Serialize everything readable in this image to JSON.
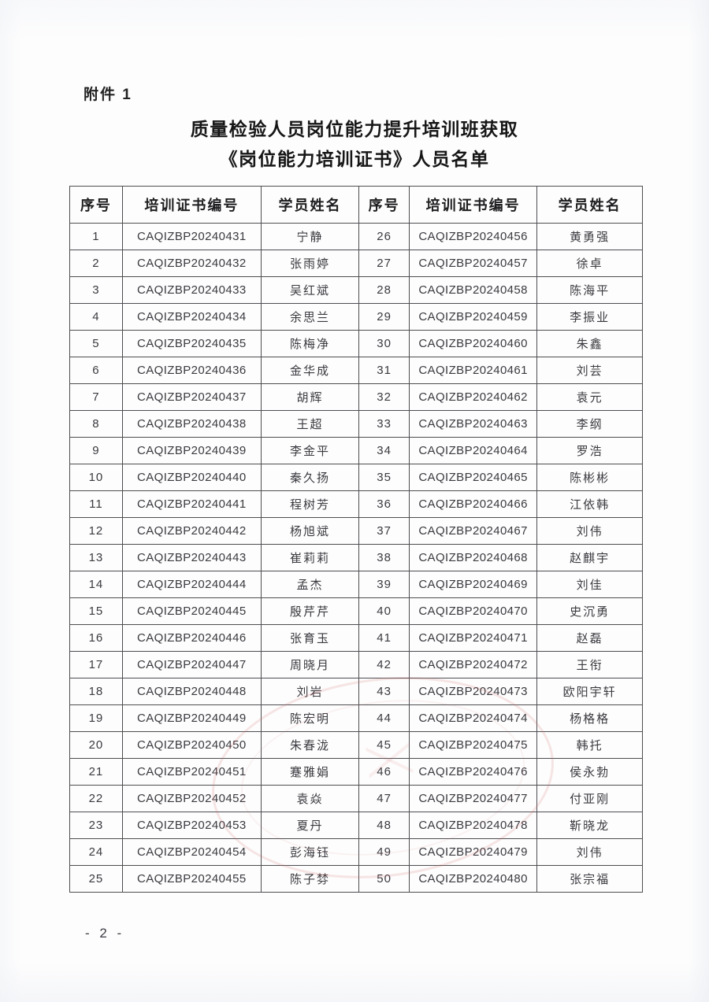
{
  "page": {
    "attachment_label": "附件 1",
    "title_line1": "质量检验人员岗位能力提升培训班获取",
    "title_line2": "《岗位能力培训证书》人员名单",
    "page_number": "- 2 -"
  },
  "seal": {
    "name": "faint-red-official-seal",
    "color": "#d66262"
  },
  "table": {
    "headers": [
      "序号",
      "培训证书编号",
      "学员姓名",
      "序号",
      "培训证书编号",
      "学员姓名"
    ],
    "rows": [
      [
        "1",
        "CAQIZBP20240431",
        "宁静",
        "26",
        "CAQIZBP20240456",
        "黄勇强"
      ],
      [
        "2",
        "CAQIZBP20240432",
        "张雨婷",
        "27",
        "CAQIZBP20240457",
        "徐卓"
      ],
      [
        "3",
        "CAQIZBP20240433",
        "吴红斌",
        "28",
        "CAQIZBP20240458",
        "陈海平"
      ],
      [
        "4",
        "CAQIZBP20240434",
        "余思兰",
        "29",
        "CAQIZBP20240459",
        "李振业"
      ],
      [
        "5",
        "CAQIZBP20240435",
        "陈梅净",
        "30",
        "CAQIZBP20240460",
        "朱鑫"
      ],
      [
        "6",
        "CAQIZBP20240436",
        "金华成",
        "31",
        "CAQIZBP20240461",
        "刘芸"
      ],
      [
        "7",
        "CAQIZBP20240437",
        "胡辉",
        "32",
        "CAQIZBP20240462",
        "袁元"
      ],
      [
        "8",
        "CAQIZBP20240438",
        "王超",
        "33",
        "CAQIZBP20240463",
        "李纲"
      ],
      [
        "9",
        "CAQIZBP20240439",
        "李金平",
        "34",
        "CAQIZBP20240464",
        "罗浩"
      ],
      [
        "10",
        "CAQIZBP20240440",
        "秦久扬",
        "35",
        "CAQIZBP20240465",
        "陈彬彬"
      ],
      [
        "11",
        "CAQIZBP20240441",
        "程树芳",
        "36",
        "CAQIZBP20240466",
        "江依韩"
      ],
      [
        "12",
        "CAQIZBP20240442",
        "杨旭斌",
        "37",
        "CAQIZBP20240467",
        "刘伟"
      ],
      [
        "13",
        "CAQIZBP20240443",
        "崔莉莉",
        "38",
        "CAQIZBP20240468",
        "赵麒宇"
      ],
      [
        "14",
        "CAQIZBP20240444",
        "孟杰",
        "39",
        "CAQIZBP20240469",
        "刘佳"
      ],
      [
        "15",
        "CAQIZBP20240445",
        "殷芹芹",
        "40",
        "CAQIZBP20240470",
        "史沉勇"
      ],
      [
        "16",
        "CAQIZBP20240446",
        "张育玉",
        "41",
        "CAQIZBP20240471",
        "赵磊"
      ],
      [
        "17",
        "CAQIZBP20240447",
        "周晓月",
        "42",
        "CAQIZBP20240472",
        "王衔"
      ],
      [
        "18",
        "CAQIZBP20240448",
        "刘岩",
        "43",
        "CAQIZBP20240473",
        "欧阳宇轩"
      ],
      [
        "19",
        "CAQIZBP20240449",
        "陈宏明",
        "44",
        "CAQIZBP20240474",
        "杨格格"
      ],
      [
        "20",
        "CAQIZBP20240450",
        "朱春泷",
        "45",
        "CAQIZBP20240475",
        "韩托"
      ],
      [
        "21",
        "CAQIZBP20240451",
        "蹇雅娟",
        "46",
        "CAQIZBP20240476",
        "侯永勃"
      ],
      [
        "22",
        "CAQIZBP20240452",
        "袁焱",
        "47",
        "CAQIZBP20240477",
        "付亚刚"
      ],
      [
        "23",
        "CAQIZBP20240453",
        "夏丹",
        "48",
        "CAQIZBP20240478",
        "靳晓龙"
      ],
      [
        "24",
        "CAQIZBP20240454",
        "彭海钰",
        "49",
        "CAQIZBP20240479",
        "刘伟"
      ],
      [
        "25",
        "CAQIZBP20240455",
        "陈子棼",
        "50",
        "CAQIZBP20240480",
        "张宗福"
      ]
    ]
  }
}
